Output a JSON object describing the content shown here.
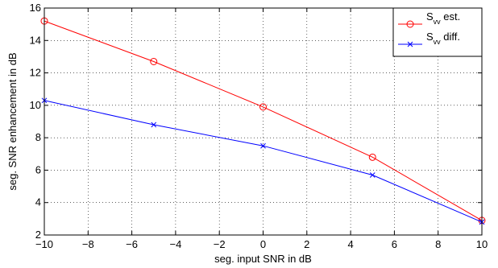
{
  "chart_data": {
    "type": "line",
    "title": "",
    "xlabel": "seg. input SNR in dB",
    "ylabel": "seg. SNR enhancement in dB",
    "xlim": [
      -10,
      10
    ],
    "ylim": [
      2,
      16
    ],
    "x_ticks": [
      -10,
      -8,
      -6,
      -4,
      -2,
      0,
      2,
      4,
      6,
      8,
      10
    ],
    "y_ticks": [
      2,
      4,
      6,
      8,
      10,
      12,
      14,
      16
    ],
    "x_tick_labels": [
      "−10",
      "−8",
      "−6",
      "−4",
      "−2",
      "0",
      "2",
      "4",
      "6",
      "8",
      "10"
    ],
    "y_tick_labels": [
      "2",
      "4",
      "6",
      "8",
      "10",
      "12",
      "14",
      "16"
    ],
    "grid": true,
    "grid_style": "dotted",
    "legend_position": "top-right",
    "x": [
      -10,
      -5,
      0,
      5,
      10
    ],
    "series": [
      {
        "name": "S_vv est.",
        "name_main": "S",
        "name_sub": "vv",
        "name_rest": " est.",
        "color": "#ff0000",
        "marker": "circle",
        "values": [
          15.2,
          12.7,
          9.9,
          6.8,
          2.9
        ]
      },
      {
        "name": "S_vv diff.",
        "name_main": "S",
        "name_sub": "vv",
        "name_rest": " diff.",
        "color": "#0000ff",
        "marker": "x",
        "values": [
          10.3,
          8.8,
          7.5,
          5.7,
          2.8
        ]
      }
    ]
  }
}
